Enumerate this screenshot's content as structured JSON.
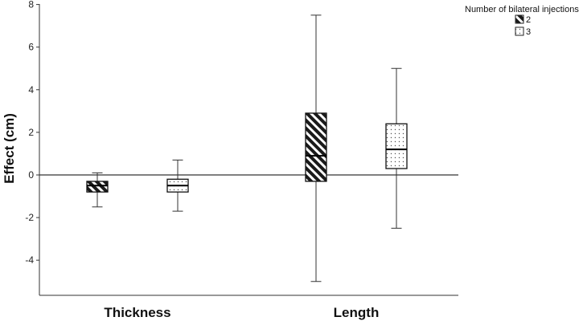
{
  "chart_data": {
    "type": "boxplot",
    "title": "",
    "xlabel": "",
    "ylabel": "Effect (cm)",
    "ylim": [
      -5.5,
      8
    ],
    "yticks": [
      8,
      6,
      4,
      2,
      0,
      -2,
      -4
    ],
    "ytick_labels": [
      "8",
      "6",
      "4",
      "2",
      "0",
      "-2",
      "-4"
    ],
    "reference_line": 0,
    "categories": [
      "Thickness",
      "Length"
    ],
    "legend": {
      "title": "Number of bilateral injections",
      "entries": [
        {
          "label": "2",
          "pattern": "diagonal-hatch"
        },
        {
          "label": "3",
          "pattern": "dots"
        }
      ]
    },
    "series": [
      {
        "name": "2",
        "boxes": [
          {
            "category": "Thickness",
            "min": -1.5,
            "q1": -0.8,
            "median": -0.5,
            "q3": -0.3,
            "max": 0.1
          },
          {
            "category": "Length",
            "min": -5.0,
            "q1": -0.3,
            "median": 0.9,
            "q3": 2.9,
            "max": 7.5
          }
        ]
      },
      {
        "name": "3",
        "boxes": [
          {
            "category": "Thickness",
            "min": -1.7,
            "q1": -0.8,
            "median": -0.5,
            "q3": -0.2,
            "max": 0.7
          },
          {
            "category": "Length",
            "min": -2.5,
            "q1": 0.3,
            "median": 1.2,
            "q3": 2.4,
            "max": 5.0
          }
        ]
      }
    ]
  }
}
